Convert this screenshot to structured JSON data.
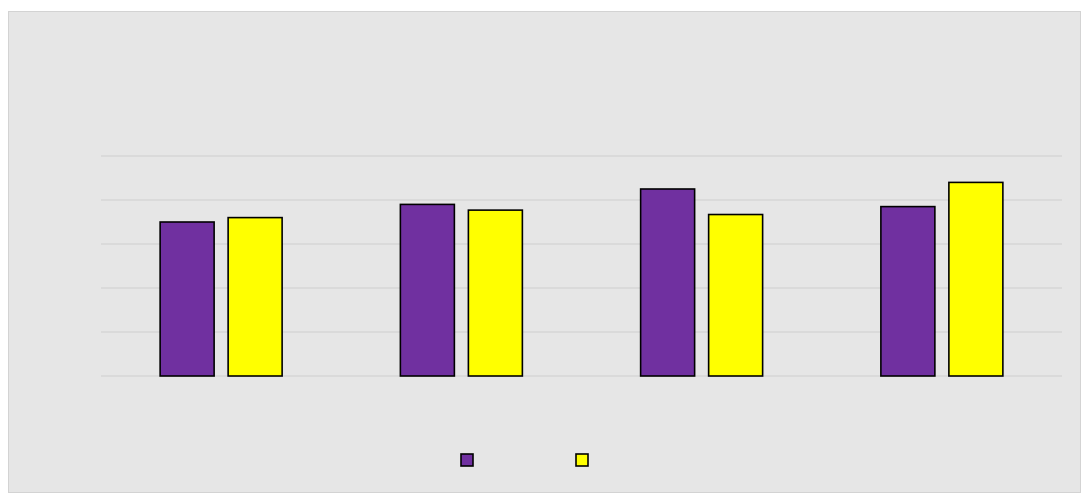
{
  "chart_data": {
    "type": "bar",
    "title": "",
    "xlabel": "",
    "ylabel": "",
    "categories": [
      "",
      "",
      "",
      ""
    ],
    "series": [
      {
        "name": "",
        "color": "#7030a0",
        "values": [
          3.5,
          3.9,
          4.25,
          3.85
        ]
      },
      {
        "name": "",
        "color": "#ffff00",
        "values": [
          3.6,
          3.77,
          3.67,
          4.4
        ]
      }
    ],
    "ylim": [
      0,
      5
    ],
    "grid": true,
    "legend": "bottom-center"
  }
}
